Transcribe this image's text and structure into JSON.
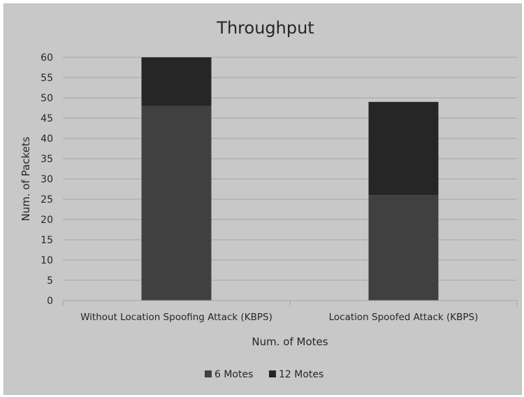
{
  "chart_data": {
    "type": "bar",
    "stacked": true,
    "title": "Throughput",
    "xlabel": "Num. of Motes",
    "ylabel": "Num. of Packets",
    "ylim": [
      0,
      60
    ],
    "y_ticks": [
      "0",
      "5",
      "10",
      "15",
      "20",
      "25",
      "30",
      "35",
      "40",
      "45",
      "50",
      "55",
      "60"
    ],
    "grid": true,
    "legend_position": "bottom",
    "categories": [
      "Without Location Spoofing Attack (KBPS)",
      "Location Spoofed Attack (KBPS)"
    ],
    "series": [
      {
        "name": "6 Motes",
        "values": [
          48,
          26
        ],
        "color": "#404040"
      },
      {
        "name": "12 Motes",
        "values": [
          12,
          23
        ],
        "color": "#262626"
      }
    ],
    "background_color": "#c8c8c8",
    "gridline_color": "#a6a6a6"
  }
}
